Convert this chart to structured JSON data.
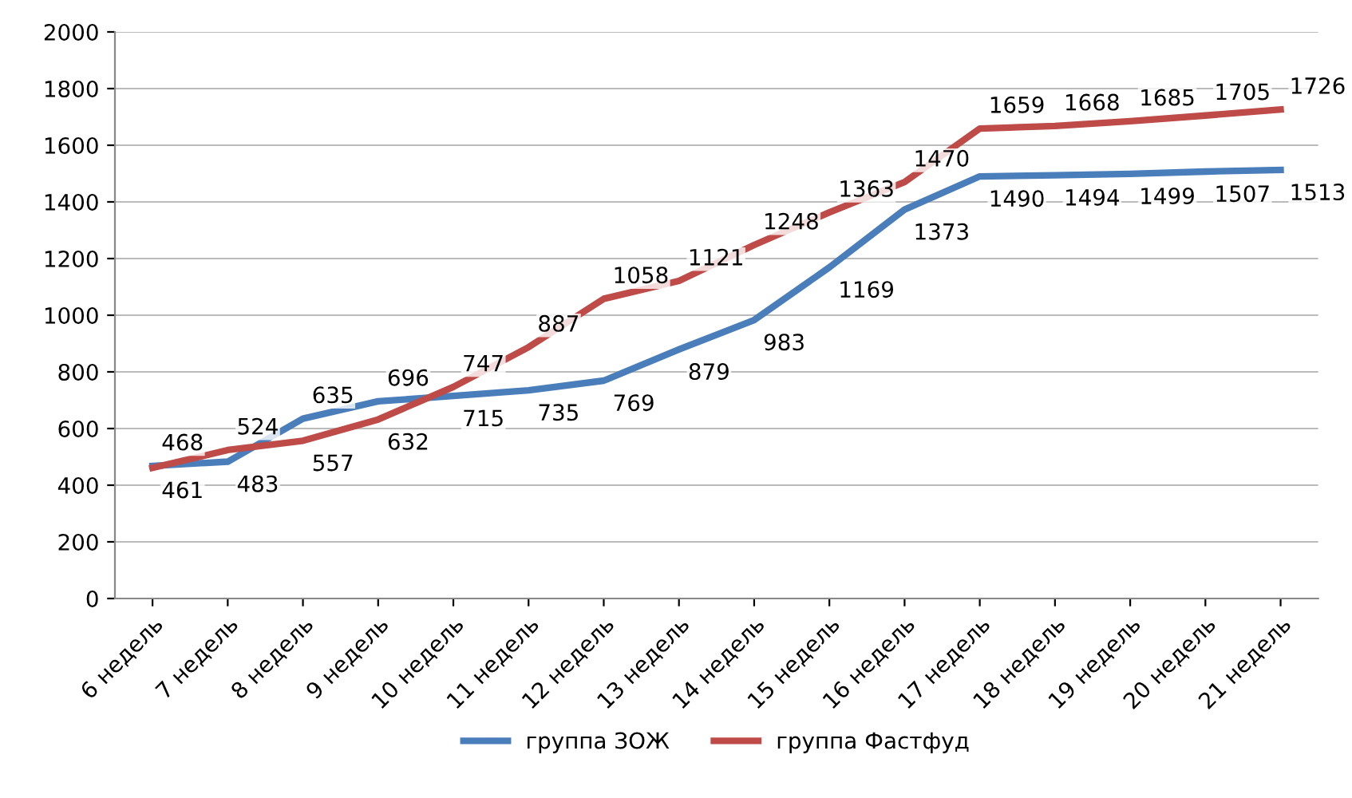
{
  "chart_data": {
    "type": "line",
    "categories": [
      "6 недель",
      "7 недель",
      "8 недель",
      "9 недель",
      "10 недель",
      "11 недель",
      "12 недель",
      "13 недель",
      "14 недель",
      "15 недель",
      "16 недель",
      "17 недель",
      "18 недель",
      "19 недель",
      "20 недель",
      "21 недель"
    ],
    "series": [
      {
        "name": "группа ЗОЖ",
        "color": "#4a7ebb",
        "values": [
          468,
          483,
          635,
          696,
          715,
          735,
          769,
          879,
          983,
          1169,
          1373,
          1490,
          1494,
          1499,
          1507,
          1513
        ]
      },
      {
        "name": "группа Фастфуд",
        "color": "#be4b48",
        "values": [
          461,
          524,
          557,
          632,
          747,
          887,
          1058,
          1121,
          1248,
          1363,
          1470,
          1659,
          1668,
          1685,
          1705,
          1726
        ]
      }
    ],
    "ylim": [
      0,
      2000
    ],
    "yticks": [
      0,
      200,
      400,
      600,
      800,
      1000,
      1200,
      1400,
      1600,
      1800,
      2000
    ],
    "grid": "y",
    "legend": "bottom",
    "data_labels": true,
    "marker": "none",
    "line_style": "solid"
  }
}
